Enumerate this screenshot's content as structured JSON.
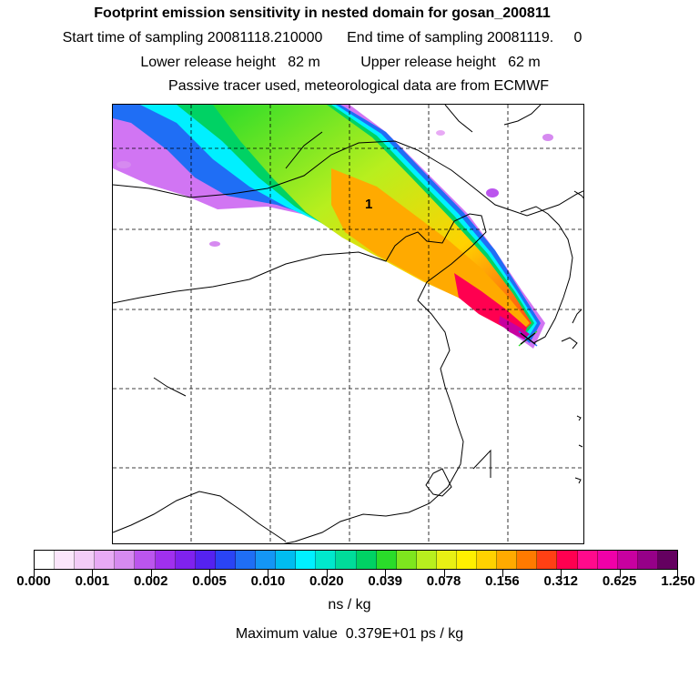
{
  "header": {
    "title": "Footprint emission sensitivity in nested domain for gosan_200811",
    "line2": "Start time of sampling 20081118.210000      End time of sampling 20081119.     0",
    "line3": "Lower release height   82 m          Upper release height   62 m",
    "line4": "Passive tracer used, meteorological data are from ECMWF"
  },
  "map": {
    "label": "1",
    "receptor_marker": "x-marker-icon"
  },
  "colorbar": {
    "colors": [
      "#ffffff",
      "#fbe6fb",
      "#f3ccf7",
      "#e8aaf5",
      "#d68af0",
      "#bb55ee",
      "#a030ee",
      "#7f22ee",
      "#5522f0",
      "#2a44f5",
      "#1f6ef5",
      "#1496f5",
      "#00bdf0",
      "#00f0ff",
      "#00e8cc",
      "#00dc9a",
      "#00d264",
      "#2adc2a",
      "#7ee61e",
      "#b8ef1e",
      "#e8f014",
      "#fff000",
      "#ffd200",
      "#ffaa00",
      "#ff7a00",
      "#ff4014",
      "#ff0050",
      "#ff0a8c",
      "#f000a8",
      "#c800a0",
      "#960088",
      "#640060"
    ],
    "tick_labels": [
      "0.000",
      "0.001",
      "0.002",
      "0.005",
      "0.010",
      "0.020",
      "0.039",
      "0.078",
      "0.156",
      "0.312",
      "0.625",
      "1.250"
    ],
    "unit": "ns / kg"
  },
  "footer": {
    "max_value": "Maximum value  0.379E+01 ps / kg"
  }
}
